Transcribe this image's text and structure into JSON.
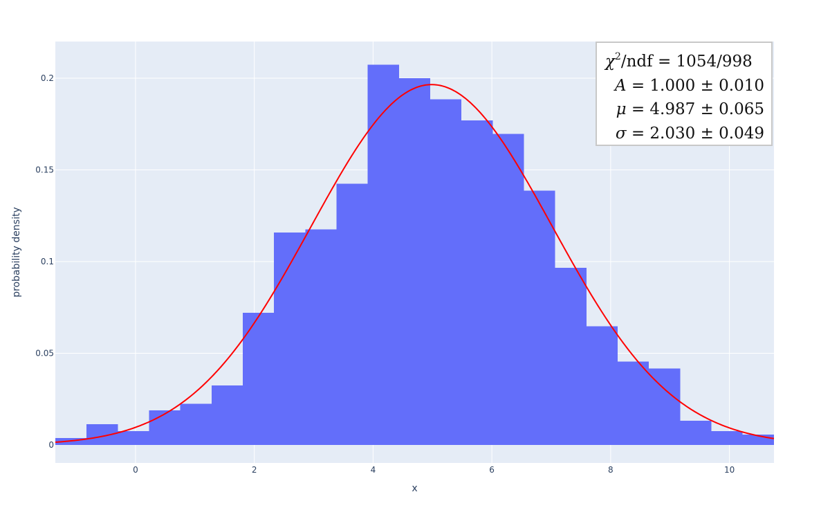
{
  "chart_data": {
    "type": "bar",
    "xlabel": "x",
    "ylabel": "probability density",
    "xlim": [
      -1.35,
      10.75
    ],
    "ylim": [
      -0.0098,
      0.22
    ],
    "x_ticks": [
      0,
      2,
      4,
      6,
      8,
      10
    ],
    "y_ticks": [
      0,
      0.05,
      0.1,
      0.15,
      0.2
    ],
    "y_tick_labels": [
      "0",
      "0.05",
      "0.1",
      "0.15",
      "0.2"
    ],
    "grid": true,
    "bar_color": "#636efa",
    "bin_width": 0.526,
    "bin_start": -1.35,
    "values": [
      0.0038,
      0.0113,
      0.0075,
      0.0188,
      0.0225,
      0.0325,
      0.0721,
      0.1158,
      0.1176,
      0.1425,
      0.2073,
      0.2,
      0.1885,
      0.177,
      0.1696,
      0.1387,
      0.0966,
      0.0648,
      0.0455,
      0.0418,
      0.0132,
      0.0075,
      0.0056
    ],
    "fit_curve": {
      "type": "line",
      "color": "#ff0000",
      "A": 1.0,
      "mu": 4.987,
      "sigma": 2.03
    },
    "annotation": {
      "chi2_label": "χ",
      "chi2_sup": "2",
      "chi2_rest": "/ndf = 1054/998",
      "A_sym": "A",
      "A_rest": " = 1.000 ± 0.010",
      "mu_sym": "μ",
      "mu_rest": " = 4.987 ± 0.065",
      "sigma_sym": "σ",
      "sigma_rest": " = 2.030 ± 0.049"
    }
  }
}
